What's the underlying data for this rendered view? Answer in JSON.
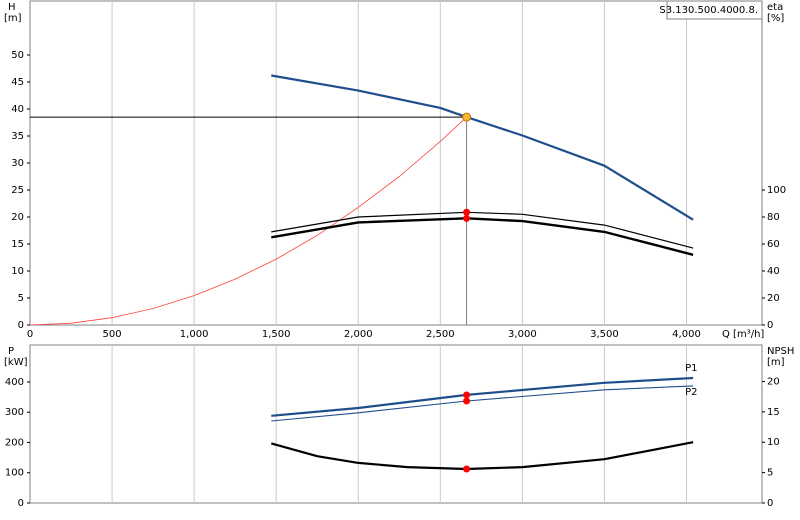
{
  "chart_data": [
    {
      "type": "line",
      "curve_id": "S3.130.500.4000.8.",
      "y_label": "H",
      "y_unit": "[m]",
      "y2_label": "eta",
      "y2_unit": "[%]",
      "x_label": "Q [m³/h]",
      "xlim": [
        0,
        4460
      ],
      "xticks": [
        0,
        500,
        {
          "value": 1000,
          "label": "1,000"
        },
        {
          "value": 1500,
          "label": "1,500"
        },
        {
          "value": 2000,
          "label": "2,000"
        },
        {
          "value": 2500,
          "label": "2,500"
        },
        {
          "value": 3000,
          "label": "3,000"
        },
        {
          "value": 3500,
          "label": "3,500"
        },
        {
          "value": 4000,
          "label": "4,000"
        }
      ],
      "ylim": [
        0,
        60
      ],
      "yticks": [
        0,
        5,
        10,
        15,
        20,
        25,
        30,
        35,
        40,
        45,
        50
      ],
      "y2lim": [
        0,
        240
      ],
      "y2ticks": [
        0,
        20,
        40,
        60,
        80,
        100
      ],
      "grid": true,
      "operating_point": {
        "x": 2660,
        "y": 38.5,
        "color": "#f5b82e"
      },
      "marker_color": "#ff0000",
      "series": [
        {
          "color": "#ff4040",
          "width": 0.8,
          "x": [
            0,
            250,
            500,
            750,
            1000,
            1250,
            1500,
            1750,
            2000,
            2250,
            2500,
            2660
          ],
          "values": [
            0,
            0.34,
            1.36,
            3.06,
            5.44,
            8.5,
            12.2,
            16.6,
            21.8,
            27.5,
            34.0,
            38.5
          ]
        },
        {
          "color": "#1f4e8c",
          "width": 2.2,
          "x": [
            1470,
            2000,
            2500,
            2660,
            3000,
            3500,
            4040
          ],
          "values": [
            46.2,
            43.4,
            40.2,
            38.5,
            35.1,
            29.5,
            19.5
          ]
        },
        {
          "color": "#000000",
          "width": 1.2,
          "axis": "y2",
          "x": [
            1470,
            2000,
            2660,
            3000,
            3500,
            4040
          ],
          "values": [
            69,
            80,
            83.5,
            82,
            74,
            57
          ]
        },
        {
          "color": "#000000",
          "width": 2.4,
          "axis": "y2",
          "x": [
            1470,
            2000,
            2660,
            3000,
            3500,
            4040
          ],
          "values": [
            65,
            76,
            79,
            77,
            69,
            52
          ]
        }
      ]
    },
    {
      "type": "line",
      "y_label": "P",
      "y_unit": "[kW]",
      "y2_label": "NPSH",
      "y2_unit": "[m]",
      "xlim": [
        0,
        4460
      ],
      "ylim": [
        0,
        522
      ],
      "yticks": [
        0,
        100,
        200,
        300,
        400
      ],
      "y2lim": [
        0,
        26
      ],
      "y2ticks": [
        0,
        5,
        10,
        15,
        20
      ],
      "grid": true,
      "marker_color": "#ff0000",
      "series": [
        {
          "name": "P1",
          "color": "#1f4e8c",
          "width": 2.2,
          "x": [
            1470,
            2000,
            2660,
            3500,
            4040
          ],
          "values": [
            288,
            314,
            357,
            397,
            413
          ]
        },
        {
          "name": "P2",
          "color": "#1f4e8c",
          "width": 1.1,
          "x": [
            1470,
            2000,
            2660,
            3500,
            4040
          ],
          "values": [
            271,
            298,
            337,
            374,
            387
          ]
        },
        {
          "color": "#000000",
          "width": 2.2,
          "axis": "y2",
          "x": [
            1470,
            1750,
            2000,
            2300,
            2660,
            3000,
            3500,
            4040
          ],
          "values": [
            9.8,
            7.7,
            6.6,
            5.9,
            5.6,
            5.9,
            7.2,
            10
          ]
        }
      ]
    }
  ]
}
